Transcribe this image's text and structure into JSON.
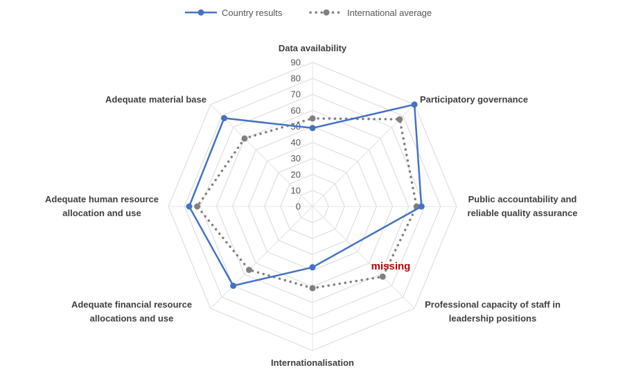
{
  "chart_data": {
    "type": "radar",
    "title": "",
    "categories": [
      [
        "Data availability"
      ],
      [
        "Participatory governance"
      ],
      [
        "Public accountability and",
        "reliable quality assurance"
      ],
      [
        "Professional capacity of staff in",
        "leadership positions"
      ],
      [
        "Internationalisation"
      ],
      [
        "Adequate financial resource",
        "allocations and use"
      ],
      [
        "Adequate human resource",
        "allocation and use"
      ],
      [
        "Adequate material base"
      ]
    ],
    "r_ticks": [
      "0",
      "10",
      "20",
      "30",
      "40",
      "50",
      "60",
      "70",
      "80",
      "90"
    ],
    "rlim": [
      0,
      90
    ],
    "grid": true,
    "legend_position": "top",
    "series": [
      {
        "name": "Country results",
        "values": [
          49,
          90,
          68,
          null,
          38,
          70,
          77,
          78
        ],
        "color": "#4472c4",
        "line": "solid"
      },
      {
        "name": "International average",
        "values": [
          55,
          77,
          65,
          62,
          51,
          56,
          72,
          60
        ],
        "color": "#808080",
        "line": "dotted"
      }
    ],
    "annotations": [
      {
        "text": "missing",
        "category_index": 3,
        "color": "#c00000"
      }
    ]
  }
}
